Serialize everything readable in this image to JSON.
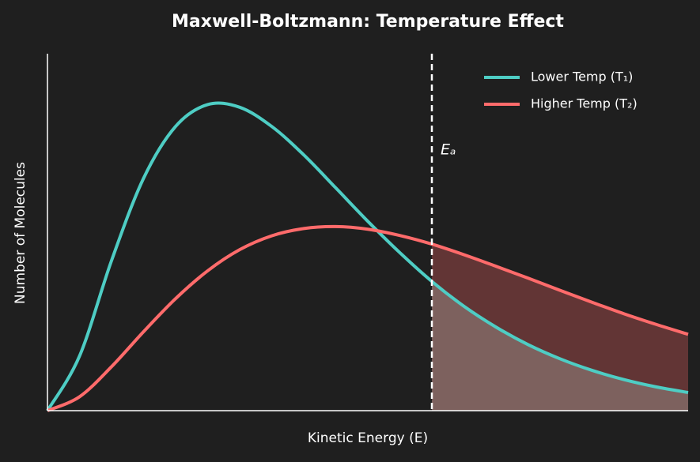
{
  "chart_data": {
    "type": "line",
    "title": "Maxwell-Boltzmann: Temperature Effect",
    "x_label": "Kinetic Energy (E)",
    "y_label": "Number of Molecules",
    "x": [
      0,
      0.5,
      1,
      1.5,
      2,
      2.5,
      3,
      3.5,
      4,
      4.5,
      5,
      5.5,
      6,
      6.5,
      7,
      7.5,
      8,
      8.5,
      9,
      9.5,
      10
    ],
    "series": [
      {
        "name": "Lower Temp (T₁)",
        "color": "#4ecdc4",
        "values": [
          0,
          0.165,
          0.454,
          0.703,
          0.86,
          0.926,
          0.918,
          0.86,
          0.774,
          0.674,
          0.573,
          0.478,
          0.391,
          0.316,
          0.253,
          0.2,
          0.157,
          0.122,
          0.094,
          0.072,
          0.055
        ]
      },
      {
        "name": "Higher Temp (T₂)",
        "color": "#ff6b6b",
        "values": [
          0,
          0.042,
          0.133,
          0.239,
          0.339,
          0.423,
          0.487,
          0.529,
          0.551,
          0.557,
          0.549,
          0.53,
          0.504,
          0.472,
          0.437,
          0.401,
          0.364,
          0.328,
          0.293,
          0.261,
          0.231
        ]
      }
    ],
    "activation_energy": {
      "value": 6,
      "label": "Eₐ"
    },
    "xlim": [
      0,
      10
    ],
    "ylim": [
      0,
      1.08
    ],
    "legend": "upper right"
  }
}
